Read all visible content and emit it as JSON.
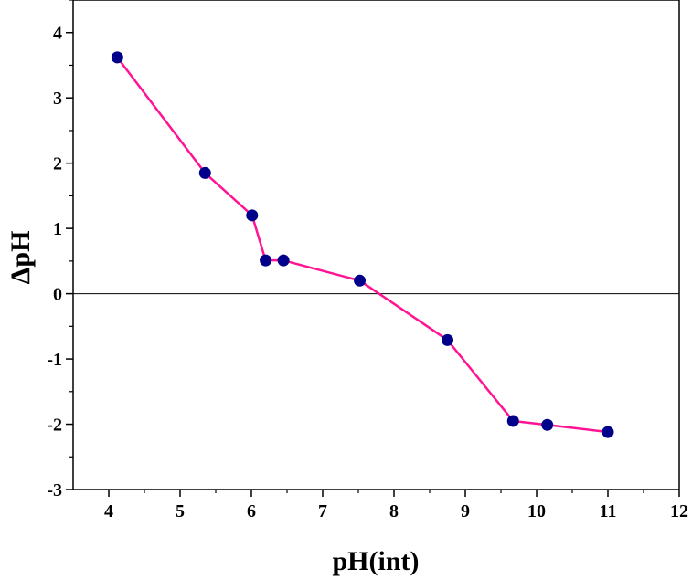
{
  "chart_data": {
    "type": "line",
    "title": "",
    "xlabel": "pH(int)",
    "ylabel": "ΔpH",
    "xlim": [
      3.5,
      12
    ],
    "ylim": [
      -3,
      4.5
    ],
    "x_ticks": [
      4,
      5,
      6,
      7,
      8,
      9,
      10,
      11,
      12
    ],
    "y_ticks": [
      -3,
      -2,
      -1,
      0,
      1,
      2,
      3,
      4
    ],
    "x_tick_labels": [
      "4",
      "5",
      "6",
      "7",
      "8",
      "9",
      "10",
      "11",
      "12"
    ],
    "y_tick_labels": [
      "-3",
      "-2",
      "-1",
      "0",
      "1",
      "2",
      "3",
      "4"
    ],
    "grid": false,
    "reference_line_y": 0,
    "series": [
      {
        "x": [
          4.12,
          5.35,
          6.01,
          6.2,
          6.45,
          7.52,
          8.75,
          9.67,
          10.15,
          11.0
        ],
        "y": [
          3.62,
          1.85,
          1.2,
          0.51,
          0.51,
          0.2,
          -0.71,
          -1.95,
          -2.01,
          -2.12
        ],
        "line_color": "#ff1493",
        "marker_color": "#00008b"
      }
    ]
  }
}
